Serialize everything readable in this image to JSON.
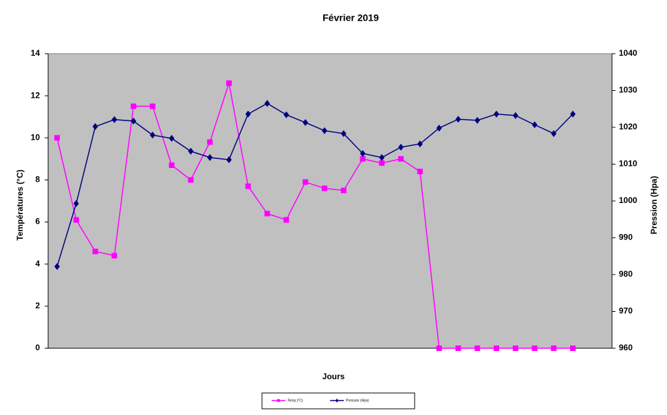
{
  "chart_data": {
    "type": "line",
    "title": "Février 2019",
    "x_label": "Jours",
    "y_label": "Températures  (°C)",
    "y2_label": "Pression (Hpa)",
    "categories": [
      null,
      null,
      null,
      null,
      null,
      null,
      null,
      null,
      null,
      null,
      null,
      null,
      null,
      null,
      null,
      null,
      null,
      null,
      null,
      null,
      null,
      null,
      null,
      null,
      null,
      null,
      null,
      null
    ],
    "ylim": [
      0,
      14
    ],
    "yticks": [
      0,
      2,
      4,
      6,
      8,
      10,
      12,
      14
    ],
    "y2lim": [
      960,
      1040
    ],
    "y2ticks": [
      960,
      970,
      980,
      990,
      1000,
      1010,
      1020,
      1030,
      1040
    ],
    "series": [
      {
        "name": "Temp (°C)",
        "color": "#ff00ff",
        "marker": "square",
        "values": [
          10,
          6.1,
          4.6,
          4.4,
          11.5,
          11.5,
          8.7,
          8.0,
          9.8,
          12.6,
          7.7,
          6.4,
          6.1,
          7.9,
          7.6,
          7.5,
          9.0,
          8.8,
          9.0,
          8.4,
          0,
          0,
          0,
          0,
          0,
          0,
          0,
          0
        ]
      },
      {
        "name": "Pression (Hpa)",
        "color": "#000080",
        "marker": "diamond",
        "axis": "y2",
        "values": [
          982.2,
          999.3,
          1020.2,
          1022.1,
          1021.7,
          1017.9,
          1017.0,
          1013.5,
          1011.8,
          1011.2,
          1023.6,
          1026.5,
          1023.4,
          1021.3,
          1019.1,
          1018.3,
          1012.9,
          1011.8,
          1014.6,
          1015.5,
          1019.8,
          1022.2,
          1021.9,
          1023.6,
          1023.2,
          1020.7,
          1018.3,
          1023.6
        ]
      }
    ],
    "legend": "bottom"
  }
}
